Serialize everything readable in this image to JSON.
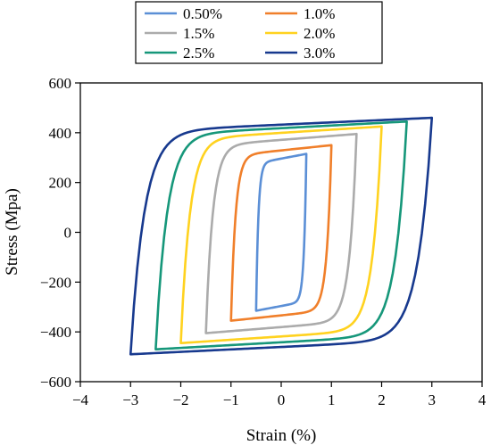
{
  "chart_data": {
    "type": "line",
    "title": "",
    "xlabel": "Strain (%)",
    "ylabel": "Stress (Mpa)",
    "xlim": [
      -4,
      4
    ],
    "ylim": [
      -600,
      600
    ],
    "xticks": [
      -4,
      -3,
      -2,
      -1,
      0,
      1,
      2,
      3,
      4
    ],
    "yticks": [
      -600,
      -400,
      -200,
      0,
      200,
      400,
      600
    ],
    "xtick_labels": [
      "−4",
      "−3",
      "−2",
      "−1",
      "0",
      "1",
      "2",
      "3",
      "4"
    ],
    "ytick_labels": [
      "−600",
      "−400",
      "−200",
      "0",
      "200",
      "400",
      "600"
    ],
    "grid": false,
    "legend_position": "top",
    "series": [
      {
        "name": "0.50%",
        "color": "#5B8FD6",
        "amplitude": 0.5,
        "peak_stress": 315,
        "min_stress": -315
      },
      {
        "name": "1.0%",
        "color": "#F07F2A",
        "amplitude": 1.0,
        "peak_stress": 350,
        "min_stress": -355
      },
      {
        "name": "1.5%",
        "color": "#ABABAB",
        "amplitude": 1.5,
        "peak_stress": 395,
        "min_stress": -405
      },
      {
        "name": "2.0%",
        "color": "#FFD21F",
        "amplitude": 2.0,
        "peak_stress": 425,
        "min_stress": -445
      },
      {
        "name": "2.5%",
        "color": "#16977A",
        "amplitude": 2.5,
        "peak_stress": 445,
        "min_stress": -470
      },
      {
        "name": "3.0%",
        "color": "#17398E",
        "amplitude": 3.0,
        "peak_stress": 460,
        "min_stress": -490
      }
    ]
  }
}
